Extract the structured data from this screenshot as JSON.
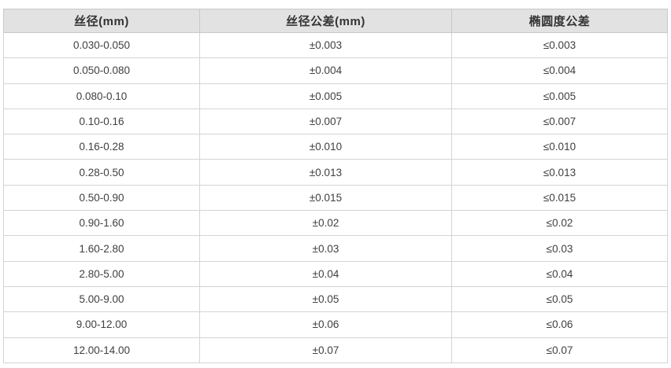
{
  "table": {
    "headers": [
      "丝径(mm)",
      "丝径公差(mm)",
      "椭圆度公差"
    ],
    "rows": [
      [
        "0.030-0.050",
        "±0.003",
        "≤0.003"
      ],
      [
        "0.050-0.080",
        "±0.004",
        "≤0.004"
      ],
      [
        "0.080-0.10",
        "±0.005",
        "≤0.005"
      ],
      [
        "0.10-0.16",
        "±0.007",
        "≤0.007"
      ],
      [
        "0.16-0.28",
        "±0.010",
        "≤0.010"
      ],
      [
        "0.28-0.50",
        "±0.013",
        "≤0.013"
      ],
      [
        "0.50-0.90",
        "±0.015",
        "≤0.015"
      ],
      [
        "0.90-1.60",
        "±0.02",
        "≤0.02"
      ],
      [
        "1.60-2.80",
        "±0.03",
        "≤0.03"
      ],
      [
        "2.80-5.00",
        "±0.04",
        "≤0.04"
      ],
      [
        "5.00-9.00",
        "±0.05",
        "≤0.05"
      ],
      [
        "9.00-12.00",
        "±0.06",
        "≤0.06"
      ],
      [
        "12.00-14.00",
        "±0.07",
        "≤0.07"
      ]
    ],
    "colors": {
      "header_bg": "#e2e2e2",
      "header_text": "#333333",
      "cell_text": "#404040",
      "header_border": "#c9c9c9",
      "cell_border": "#d4d4d4",
      "row_bg": "#ffffff"
    }
  }
}
